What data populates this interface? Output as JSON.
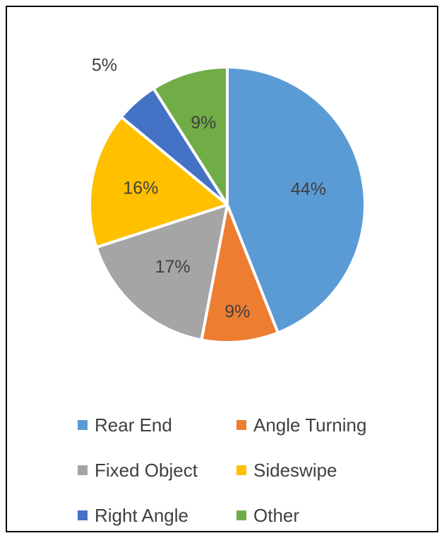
{
  "chart_data": {
    "type": "pie",
    "categories": [
      "Rear End",
      "Angle Turning",
      "Fixed Object",
      "Sideswipe",
      "Right Angle",
      "Other"
    ],
    "values": [
      44,
      9,
      17,
      16,
      5,
      9
    ],
    "labels": [
      "44%",
      "9%",
      "17%",
      "16%",
      "5%",
      "9%"
    ],
    "colors": [
      "#5B9BD5",
      "#ED7D31",
      "#A5A5A5",
      "#FFC000",
      "#4472C4",
      "#70AD47"
    ],
    "legend_position": "bottom",
    "start_angle_deg": 0,
    "direction": "clockwise"
  }
}
